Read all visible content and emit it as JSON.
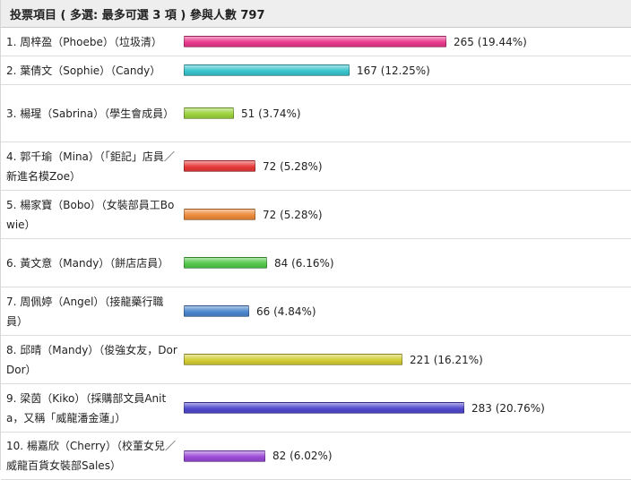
{
  "header": {
    "title": "投票項目",
    "rule": "( 多選: 最多可選 3 項 )",
    "participants_label": "參與人數",
    "participants_count": "797"
  },
  "options": [
    {
      "label": "1. 周梓盈（Phoebe）（垃圾清）",
      "votes": 265,
      "vote_text": "265 (19.44%)",
      "color": "#e8388c"
    },
    {
      "label": "2. 葉倩文（Sophie）（Candy）",
      "votes": 167,
      "vote_text": "167 (12.25%)",
      "color": "#38c4cc"
    },
    {
      "label": "3. 楊瑆（Sabrina）（學生會成員）",
      "votes": 51,
      "vote_text": "51 (3.74%)",
      "color": "#9cd23c"
    },
    {
      "label": "4. 郭千瑜（Mina）（「鉅記」店員／新進名模Zoe）",
      "votes": 72,
      "vote_text": "72 (5.28%)",
      "color": "#e63838"
    },
    {
      "label": "5. 楊家寶（Bobo）（女裝部員工Bowie）",
      "votes": 72,
      "vote_text": "72 (5.28%)",
      "color": "#ec8a3a"
    },
    {
      "label": "6. 黃文意（Mandy）（餅店店員）",
      "votes": 84,
      "vote_text": "84 (6.16%)",
      "color": "#52c84a"
    },
    {
      "label": "7. 周佩婷（Angel）（接龍藥行職員）",
      "votes": 66,
      "vote_text": "66 (4.84%)",
      "color": "#4a86cc"
    },
    {
      "label": "8. 邱晴（Mandy）（俊強女友，Dor Dor）",
      "votes": 221,
      "vote_text": "221 (16.21%)",
      "color": "#d2cc34"
    },
    {
      "label": "9. 梁茵（Kiko）（採購部文員Anita，又稱「威龍潘金蓮」）",
      "votes": 283,
      "vote_text": "283 (20.76%)",
      "color": "#5048cc"
    },
    {
      "label": "10. 楊嘉欣（Cherry）（校董女兒／威龍百貨女裝部Sales）",
      "votes": 82,
      "vote_text": "82 (6.02%)",
      "color": "#9a4ad6"
    }
  ]
}
